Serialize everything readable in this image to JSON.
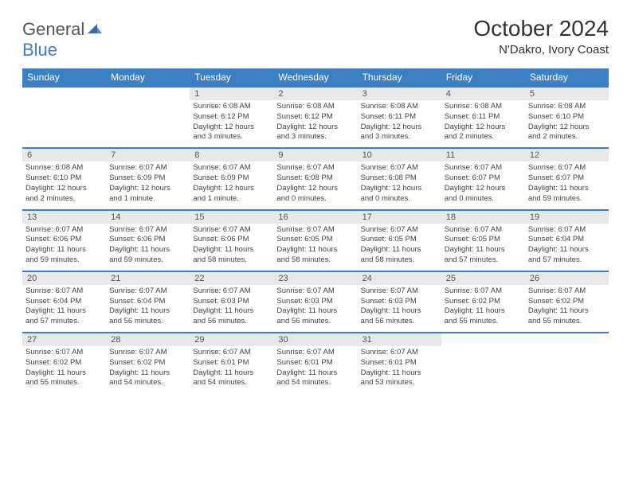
{
  "brand": {
    "part1": "General",
    "part2": "Blue"
  },
  "title": "October 2024",
  "location": "N'Dakro, Ivory Coast",
  "colors": {
    "accent": "#3b7fc4",
    "header_bg": "#3b7fc4",
    "daynum_bg": "#e8e8e8",
    "text": "#333333"
  },
  "day_headers": [
    "Sunday",
    "Monday",
    "Tuesday",
    "Wednesday",
    "Thursday",
    "Friday",
    "Saturday"
  ],
  "weeks": [
    [
      {
        "n": "",
        "lines": []
      },
      {
        "n": "",
        "lines": []
      },
      {
        "n": "1",
        "lines": [
          "Sunrise: 6:08 AM",
          "Sunset: 6:12 PM",
          "Daylight: 12 hours",
          "and 3 minutes."
        ]
      },
      {
        "n": "2",
        "lines": [
          "Sunrise: 6:08 AM",
          "Sunset: 6:12 PM",
          "Daylight: 12 hours",
          "and 3 minutes."
        ]
      },
      {
        "n": "3",
        "lines": [
          "Sunrise: 6:08 AM",
          "Sunset: 6:11 PM",
          "Daylight: 12 hours",
          "and 3 minutes."
        ]
      },
      {
        "n": "4",
        "lines": [
          "Sunrise: 6:08 AM",
          "Sunset: 6:11 PM",
          "Daylight: 12 hours",
          "and 2 minutes."
        ]
      },
      {
        "n": "5",
        "lines": [
          "Sunrise: 6:08 AM",
          "Sunset: 6:10 PM",
          "Daylight: 12 hours",
          "and 2 minutes."
        ]
      }
    ],
    [
      {
        "n": "6",
        "lines": [
          "Sunrise: 6:08 AM",
          "Sunset: 6:10 PM",
          "Daylight: 12 hours",
          "and 2 minutes."
        ]
      },
      {
        "n": "7",
        "lines": [
          "Sunrise: 6:07 AM",
          "Sunset: 6:09 PM",
          "Daylight: 12 hours",
          "and 1 minute."
        ]
      },
      {
        "n": "8",
        "lines": [
          "Sunrise: 6:07 AM",
          "Sunset: 6:09 PM",
          "Daylight: 12 hours",
          "and 1 minute."
        ]
      },
      {
        "n": "9",
        "lines": [
          "Sunrise: 6:07 AM",
          "Sunset: 6:08 PM",
          "Daylight: 12 hours",
          "and 0 minutes."
        ]
      },
      {
        "n": "10",
        "lines": [
          "Sunrise: 6:07 AM",
          "Sunset: 6:08 PM",
          "Daylight: 12 hours",
          "and 0 minutes."
        ]
      },
      {
        "n": "11",
        "lines": [
          "Sunrise: 6:07 AM",
          "Sunset: 6:07 PM",
          "Daylight: 12 hours",
          "and 0 minutes."
        ]
      },
      {
        "n": "12",
        "lines": [
          "Sunrise: 6:07 AM",
          "Sunset: 6:07 PM",
          "Daylight: 11 hours",
          "and 59 minutes."
        ]
      }
    ],
    [
      {
        "n": "13",
        "lines": [
          "Sunrise: 6:07 AM",
          "Sunset: 6:06 PM",
          "Daylight: 11 hours",
          "and 59 minutes."
        ]
      },
      {
        "n": "14",
        "lines": [
          "Sunrise: 6:07 AM",
          "Sunset: 6:06 PM",
          "Daylight: 11 hours",
          "and 59 minutes."
        ]
      },
      {
        "n": "15",
        "lines": [
          "Sunrise: 6:07 AM",
          "Sunset: 6:06 PM",
          "Daylight: 11 hours",
          "and 58 minutes."
        ]
      },
      {
        "n": "16",
        "lines": [
          "Sunrise: 6:07 AM",
          "Sunset: 6:05 PM",
          "Daylight: 11 hours",
          "and 58 minutes."
        ]
      },
      {
        "n": "17",
        "lines": [
          "Sunrise: 6:07 AM",
          "Sunset: 6:05 PM",
          "Daylight: 11 hours",
          "and 58 minutes."
        ]
      },
      {
        "n": "18",
        "lines": [
          "Sunrise: 6:07 AM",
          "Sunset: 6:05 PM",
          "Daylight: 11 hours",
          "and 57 minutes."
        ]
      },
      {
        "n": "19",
        "lines": [
          "Sunrise: 6:07 AM",
          "Sunset: 6:04 PM",
          "Daylight: 11 hours",
          "and 57 minutes."
        ]
      }
    ],
    [
      {
        "n": "20",
        "lines": [
          "Sunrise: 6:07 AM",
          "Sunset: 6:04 PM",
          "Daylight: 11 hours",
          "and 57 minutes."
        ]
      },
      {
        "n": "21",
        "lines": [
          "Sunrise: 6:07 AM",
          "Sunset: 6:04 PM",
          "Daylight: 11 hours",
          "and 56 minutes."
        ]
      },
      {
        "n": "22",
        "lines": [
          "Sunrise: 6:07 AM",
          "Sunset: 6:03 PM",
          "Daylight: 11 hours",
          "and 56 minutes."
        ]
      },
      {
        "n": "23",
        "lines": [
          "Sunrise: 6:07 AM",
          "Sunset: 6:03 PM",
          "Daylight: 11 hours",
          "and 56 minutes."
        ]
      },
      {
        "n": "24",
        "lines": [
          "Sunrise: 6:07 AM",
          "Sunset: 6:03 PM",
          "Daylight: 11 hours",
          "and 56 minutes."
        ]
      },
      {
        "n": "25",
        "lines": [
          "Sunrise: 6:07 AM",
          "Sunset: 6:02 PM",
          "Daylight: 11 hours",
          "and 55 minutes."
        ]
      },
      {
        "n": "26",
        "lines": [
          "Sunrise: 6:07 AM",
          "Sunset: 6:02 PM",
          "Daylight: 11 hours",
          "and 55 minutes."
        ]
      }
    ],
    [
      {
        "n": "27",
        "lines": [
          "Sunrise: 6:07 AM",
          "Sunset: 6:02 PM",
          "Daylight: 11 hours",
          "and 55 minutes."
        ]
      },
      {
        "n": "28",
        "lines": [
          "Sunrise: 6:07 AM",
          "Sunset: 6:02 PM",
          "Daylight: 11 hours",
          "and 54 minutes."
        ]
      },
      {
        "n": "29",
        "lines": [
          "Sunrise: 6:07 AM",
          "Sunset: 6:01 PM",
          "Daylight: 11 hours",
          "and 54 minutes."
        ]
      },
      {
        "n": "30",
        "lines": [
          "Sunrise: 6:07 AM",
          "Sunset: 6:01 PM",
          "Daylight: 11 hours",
          "and 54 minutes."
        ]
      },
      {
        "n": "31",
        "lines": [
          "Sunrise: 6:07 AM",
          "Sunset: 6:01 PM",
          "Daylight: 11 hours",
          "and 53 minutes."
        ]
      },
      {
        "n": "",
        "lines": []
      },
      {
        "n": "",
        "lines": []
      }
    ]
  ]
}
